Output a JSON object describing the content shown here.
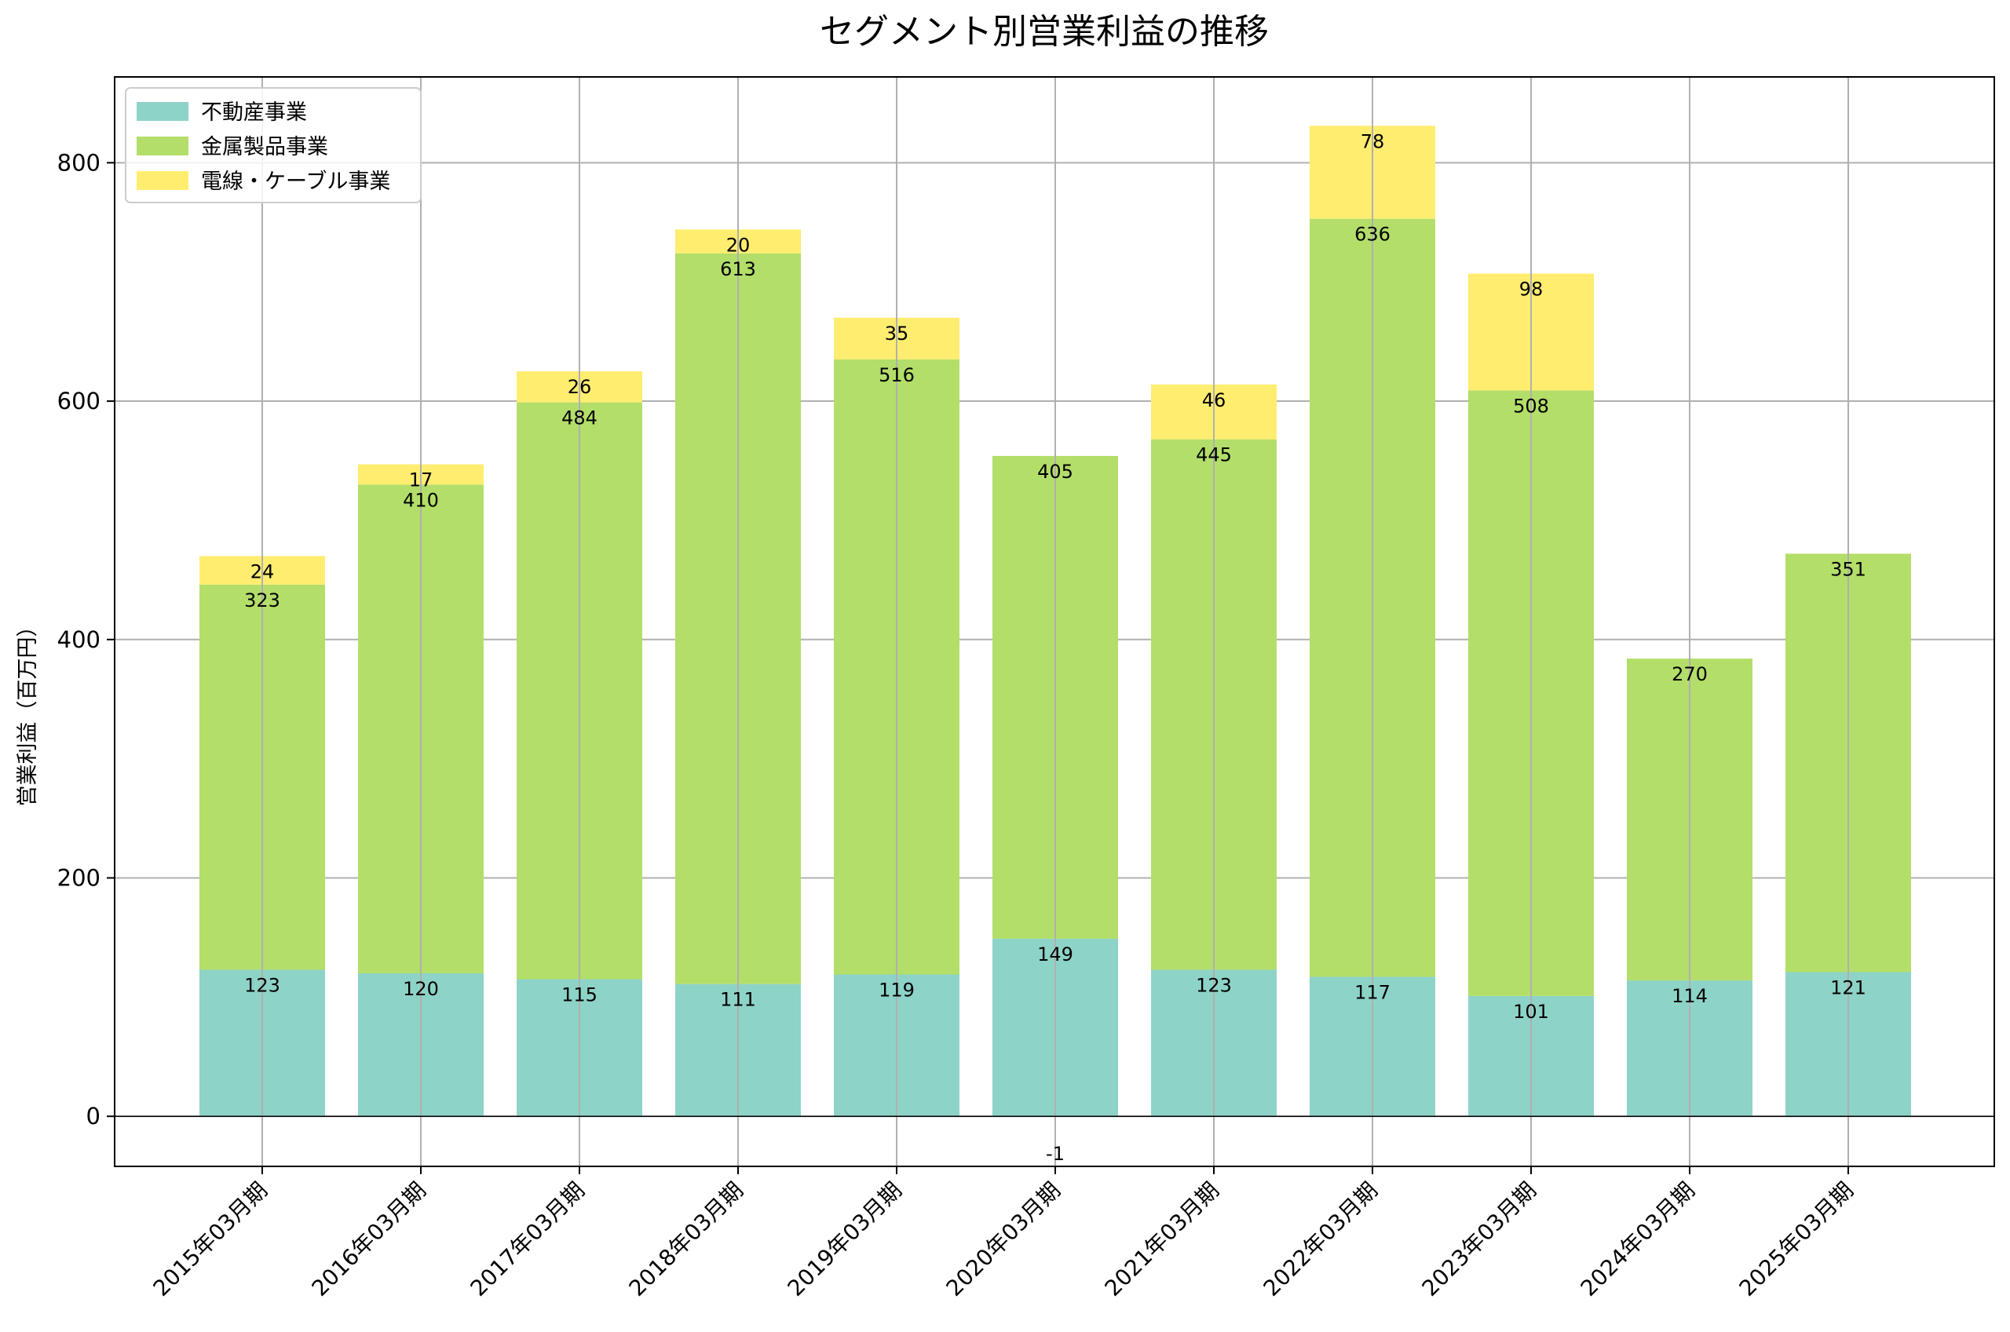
{
  "chart_data": {
    "type": "bar",
    "stacked": true,
    "title": "セグメント別営業利益の推移",
    "xlabel": "",
    "ylabel": "営業利益（百万円）",
    "categories": [
      "2015年03月期",
      "2016年03月期",
      "2017年03月期",
      "2018年03月期",
      "2019年03月期",
      "2020年03月期",
      "2021年03月期",
      "2022年03月期",
      "2023年03月期",
      "2024年03月期",
      "2025年03月期"
    ],
    "series": [
      {
        "name": "不動産事業",
        "color": "#8dd3c7",
        "values": [
          123,
          120,
          115,
          111,
          119,
          149,
          123,
          117,
          101,
          114,
          121
        ]
      },
      {
        "name": "金属製品事業",
        "color": "#b3de69",
        "values": [
          323,
          410,
          484,
          613,
          516,
          405,
          445,
          636,
          508,
          270,
          351
        ]
      },
      {
        "name": "電線・ケーブル事業",
        "color": "#ffed6f",
        "values": [
          24,
          17,
          26,
          20,
          35,
          -1,
          46,
          78,
          98,
          null,
          null
        ]
      }
    ],
    "ylim": [
      -42,
      872
    ],
    "yticks": [
      0,
      200,
      400,
      600,
      800
    ],
    "grid": true,
    "legend": "top-left"
  }
}
